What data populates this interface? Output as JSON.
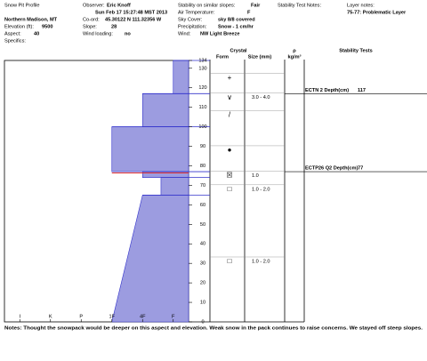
{
  "header": {
    "title": "Snow Pit Profile",
    "observer_label": "Observer:",
    "observer": "Eric Knoff",
    "date": "Sun Feb 17 15:27:48 MST 2013",
    "location": "Northern Madison, MT",
    "coord_label": "Co-ord:",
    "coord": "45.30122 N 111.32356 W",
    "elevation_label": "Elevation (ft):",
    "elevation": "9500",
    "slope_label": "Slope:",
    "slope": "28",
    "aspect_label": "Aspect:",
    "aspect": "40",
    "wind_loading_label": "Wind loading:",
    "wind_loading": "no",
    "specifics_label": "Specifics:",
    "stability_label": "Stability on similar slopes:",
    "stability": "Fair",
    "air_temp_label": "Air Temperature:",
    "air_temp": "F",
    "sky_label": "Sky Cover:",
    "sky": "sky 8/8 covered",
    "precip_label": "Precipitation:",
    "precip": "Snow - 1 cm/hr",
    "wind_label": "Wind:",
    "wind": "NW Light Breeze",
    "test_notes_label": "Stability Test Notes:",
    "layer_notes_label": "Layer notes:",
    "layer_notes": "75-77: Problematic Layer"
  },
  "chart_data": {
    "type": "snow-profile",
    "ylim": [
      0,
      134
    ],
    "yticks": [
      0,
      10,
      20,
      30,
      40,
      50,
      60,
      70,
      80,
      90,
      100,
      110,
      120,
      130,
      134
    ],
    "xlim": [
      6.5,
      0.5
    ],
    "xticks": [
      {
        "value": 6,
        "label": "I"
      },
      {
        "value": 5,
        "label": "K"
      },
      {
        "value": 4,
        "label": "P"
      },
      {
        "value": 3,
        "label": "1F"
      },
      {
        "value": 2,
        "label": "4F"
      },
      {
        "value": 1,
        "label": "F"
      }
    ],
    "color": "#9c9ce0",
    "edge_color": "#3333cc",
    "layers": [
      {
        "top": 134,
        "bottom": 117,
        "hardness_top": 1,
        "hardness_bottom": 1
      },
      {
        "top": 117,
        "bottom": 100,
        "hardness_top": 2,
        "hardness_bottom": 2
      },
      {
        "top": 100,
        "bottom": 77,
        "hardness_top": 3,
        "hardness_bottom": 3
      },
      {
        "top": 77,
        "bottom": 74,
        "hardness_top": 2,
        "hardness_bottom": 2
      },
      {
        "top": 74,
        "bottom": 65,
        "hardness_top": 1.4,
        "hardness_bottom": 1.4
      },
      {
        "top": 65,
        "bottom": 0,
        "hardness_top": 2,
        "hardness_bottom": 3
      }
    ],
    "highlight": {
      "height": 77,
      "color": "#e03030"
    },
    "columns": {
      "crystal": "Crystal",
      "form": "Form",
      "size": "Size (mm)",
      "rho": "ρ",
      "density": "kg/m³",
      "tests": "Stability Tests"
    },
    "crystals": [
      {
        "height": 125,
        "form": "+"
      },
      {
        "height": 115,
        "form": "∨",
        "size": "3.0 - 4.0"
      },
      {
        "height": 106,
        "form": "/"
      },
      {
        "height": 88,
        "form": "●"
      },
      {
        "height": 75,
        "form": "☒",
        "size": "1.0"
      },
      {
        "height": 68,
        "form": "□",
        "size": "1.0 - 2.0"
      },
      {
        "height": 31,
        "form": "□",
        "size": "1.0 - 2.0"
      }
    ],
    "stability_tests": [
      {
        "label": "ECTN 2  Depth(cm)",
        "depth": 117
      },
      {
        "label": "ECTP26 Q2 Depth(cm)",
        "depth": 77
      }
    ],
    "notes": "Notes: Thought the snowpack would be deeper on this aspect and elevation. Weak snow in the pack continues to raise concerns. We stayed off steep slopes."
  }
}
